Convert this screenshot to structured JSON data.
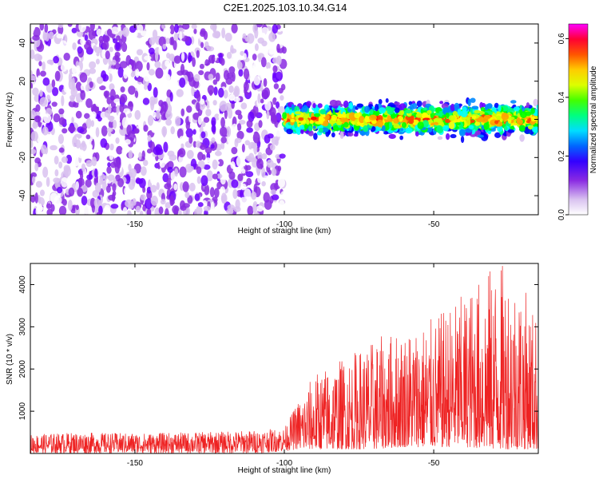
{
  "title": "C2E1.2025.103.10.34.G14",
  "chart_data": [
    {
      "type": "heatmap",
      "xlabel": "Height of straight line (km)",
      "ylabel": "Frequency (Hz)",
      "xlim": [
        -185,
        -15
      ],
      "ylim": [
        -50,
        50
      ],
      "x_ticks": [
        -150,
        -100,
        -50
      ],
      "y_ticks": [
        -40,
        -20,
        0,
        20,
        40
      ],
      "colorbar": {
        "label": "Normalized spectral amplitude",
        "range": [
          0,
          0.65
        ],
        "ticks": [
          "0.0",
          "0.2",
          "0.4",
          "0.6"
        ],
        "colors": [
          "#ffffff",
          "#d9c2f0",
          "#8a2be2",
          "#6a00ff",
          "#0000ff",
          "#0088ff",
          "#00ffff",
          "#00ff80",
          "#00ff00",
          "#ccff00",
          "#ffff00",
          "#ffa500",
          "#ff4000",
          "#ff0000",
          "#ff0080",
          "#ff00ff"
        ]
      },
      "features": [
        {
          "name": "noise region",
          "x_range": [
            -185,
            -100
          ],
          "freq_range": [
            -50,
            50
          ],
          "mean_amplitude": 0.08
        },
        {
          "name": "signal band",
          "x_range": [
            -100,
            -15
          ],
          "freq_center": 0,
          "freq_halfwidth": 8,
          "mean_amplitude": 0.3
        }
      ]
    },
    {
      "type": "line",
      "xlabel": "Height of straight line (km)",
      "ylabel": "SNR (10 * v/v)",
      "xlim": [
        -185,
        -15
      ],
      "ylim": [
        0,
        4500
      ],
      "x_ticks": [
        -150,
        -100,
        -50
      ],
      "y_ticks": [
        1000,
        2000,
        3000,
        4000
      ],
      "color": "#ee2222",
      "envelope": {
        "x": [
          -185,
          -170,
          -150,
          -130,
          -110,
          -100,
          -95,
          -90,
          -80,
          -70,
          -60,
          -50,
          -40,
          -30,
          -25,
          -20,
          -15
        ],
        "upper": [
          450,
          500,
          480,
          500,
          550,
          600,
          1300,
          1900,
          2300,
          2700,
          3000,
          3200,
          3800,
          4500,
          4500,
          4000,
          3200
        ],
        "lower": [
          0,
          0,
          0,
          0,
          0,
          50,
          100,
          100,
          100,
          100,
          150,
          150,
          150,
          100,
          100,
          100,
          100
        ]
      }
    }
  ]
}
